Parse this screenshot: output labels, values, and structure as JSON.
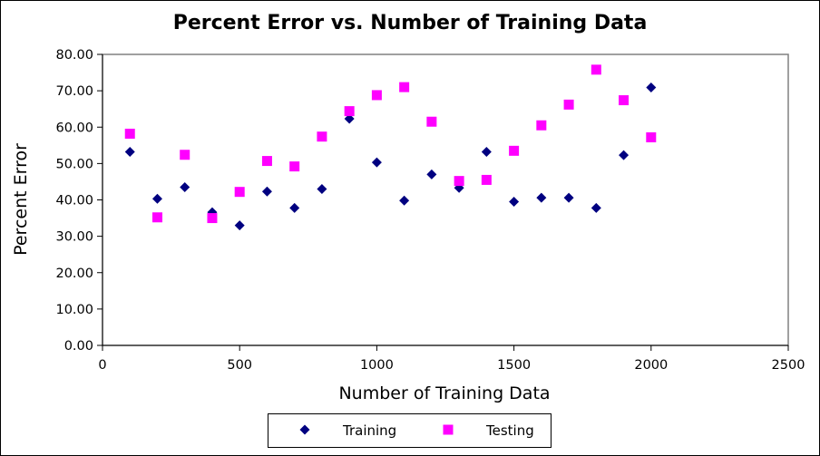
{
  "chart_data": {
    "type": "scatter",
    "title": "Percent Error vs. Number of Training Data",
    "xlabel": "Number of Training Data",
    "ylabel": "Percent Error",
    "xlim": [
      0,
      2500
    ],
    "ylim": [
      0,
      80
    ],
    "x_ticks": [
      "0",
      "500",
      "1000",
      "1500",
      "2000",
      "2500"
    ],
    "y_ticks": [
      "0.00",
      "10.00",
      "20.00",
      "30.00",
      "40.00",
      "50.00",
      "60.00",
      "70.00",
      "80.00"
    ],
    "grid": false,
    "legend_position": "bottom",
    "series": [
      {
        "name": "Training",
        "marker": "diamond",
        "color": "#000080",
        "points": [
          [
            100,
            53.2
          ],
          [
            200,
            40.3
          ],
          [
            300,
            43.5
          ],
          [
            400,
            36.6
          ],
          [
            500,
            33.0
          ],
          [
            600,
            42.3
          ],
          [
            700,
            37.8
          ],
          [
            800,
            43.0
          ],
          [
            900,
            62.3
          ],
          [
            1000,
            50.3
          ],
          [
            1100,
            39.8
          ],
          [
            1200,
            47.0
          ],
          [
            1300,
            43.3
          ],
          [
            1400,
            53.2
          ],
          [
            1500,
            39.5
          ],
          [
            1600,
            40.6
          ],
          [
            1700,
            40.6
          ],
          [
            1800,
            37.8
          ],
          [
            1900,
            52.3
          ],
          [
            2000,
            70.9
          ]
        ]
      },
      {
        "name": "Testing",
        "marker": "square",
        "color": "#ff00ff",
        "points": [
          [
            100,
            58.2
          ],
          [
            200,
            35.2
          ],
          [
            300,
            52.4
          ],
          [
            400,
            35.0
          ],
          [
            500,
            42.2
          ],
          [
            600,
            50.7
          ],
          [
            700,
            49.2
          ],
          [
            800,
            57.4
          ],
          [
            900,
            64.4
          ],
          [
            1000,
            68.8
          ],
          [
            1100,
            71.0
          ],
          [
            1200,
            61.5
          ],
          [
            1300,
            45.2
          ],
          [
            1400,
            45.5
          ],
          [
            1500,
            53.5
          ],
          [
            1600,
            60.5
          ],
          [
            1700,
            66.2
          ],
          [
            1800,
            75.8
          ],
          [
            1900,
            67.4
          ],
          [
            2000,
            57.2
          ]
        ]
      }
    ]
  }
}
